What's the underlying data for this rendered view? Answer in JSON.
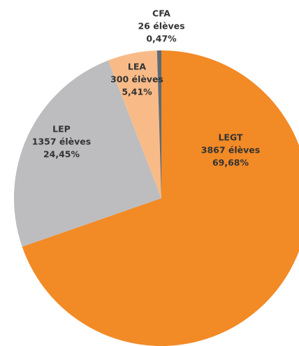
{
  "chart_data": {
    "type": "pie",
    "categories": [
      "LEGT",
      "LEP",
      "LEA",
      "CFA"
    ],
    "values": [
      69.68,
      24.45,
      5.41,
      0.47
    ],
    "value_labels": [
      "69,68%",
      "24,45%",
      "5,41%",
      "0,47%"
    ],
    "count_labels": [
      "3867 élèves",
      "1357 élèves",
      "300 élèves",
      "26 élèves"
    ],
    "colors": [
      "#f28a26",
      "#bdbdbf",
      "#f8bb88",
      "#5e6a78"
    ]
  }
}
